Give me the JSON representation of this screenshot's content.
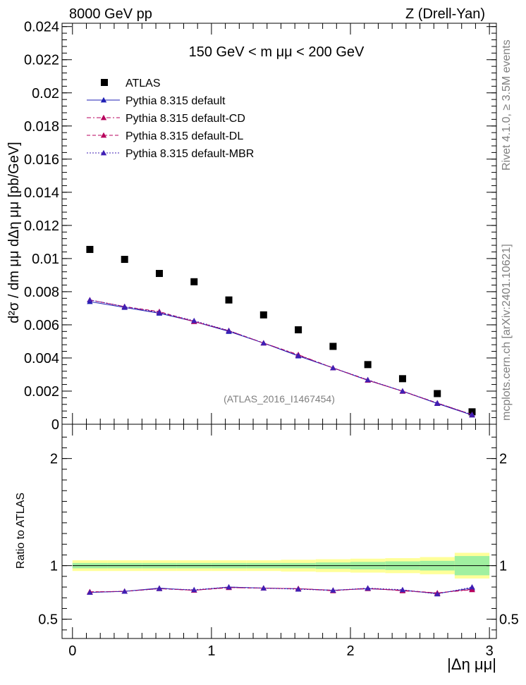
{
  "header": {
    "left": "8000 GeV pp",
    "right": "Z (Drell-Yan)"
  },
  "side_labels": {
    "rivet": "Rivet 4.1.0, ≥ 3.5M events",
    "mcplots": "mcplots.cern.ch [arXiv:2401.10621]"
  },
  "chart_data": [
    {
      "type": "scatter",
      "panel": "main",
      "title": "150 GeV < m μμ < 200 GeV",
      "watermark": "(ATLAS_2016_I1467454)",
      "ylabel": "d²σ / dm μμ dΔη μμ [pb/GeV]",
      "xlim": [
        -0.075,
        3.05
      ],
      "ylim": [
        0,
        0.0242
      ],
      "yticks": [
        0,
        0.002,
        0.004,
        0.006,
        0.008,
        0.01,
        0.012,
        0.014,
        0.016,
        0.018,
        0.02,
        0.022,
        0.024
      ],
      "ytick_labels": [
        "0",
        "0.002",
        "0.004",
        "0.006",
        "0.008",
        "0.01",
        "0.012",
        "0.014",
        "0.016",
        "0.018",
        "0.02",
        "0.022",
        "0.024"
      ],
      "x": [
        0.125,
        0.375,
        0.625,
        0.875,
        1.125,
        1.375,
        1.625,
        1.875,
        2.125,
        2.375,
        2.625,
        2.875
      ],
      "series": [
        {
          "name": "ATLAS",
          "style": "square",
          "color": "#000000",
          "values": [
            0.01055,
            0.00995,
            0.0091,
            0.0086,
            0.0075,
            0.0066,
            0.0057,
            0.0047,
            0.0036,
            0.00275,
            0.00185,
            0.00075
          ]
        },
        {
          "name": "Pythia 8.315 default",
          "style": "solid",
          "color": "#1f1fb4",
          "values": [
            0.0074,
            0.00705,
            0.0067,
            0.0062,
            0.0056,
            0.0049,
            0.00412,
            0.0034,
            0.00265,
            0.002,
            0.00125,
            0.00055
          ]
        },
        {
          "name": "Pythia 8.315 default-CD",
          "style": "dashdot",
          "color": "#b8005c",
          "values": [
            0.0075,
            0.0071,
            0.00675,
            0.0062,
            0.00565,
            0.0049,
            0.0042,
            0.0034,
            0.00268,
            0.00198,
            0.00128,
            0.00058
          ]
        },
        {
          "name": "Pythia 8.315 default-DL",
          "style": "dashed",
          "color": "#b8005c",
          "values": [
            0.0075,
            0.0071,
            0.0068,
            0.0062,
            0.00565,
            0.0049,
            0.00418,
            0.0034,
            0.00265,
            0.002,
            0.00128,
            0.00058
          ]
        },
        {
          "name": "Pythia 8.315 default-MBR",
          "style": "dotted",
          "color": "#3f1fb4",
          "values": [
            0.0075,
            0.0071,
            0.00675,
            0.00625,
            0.00565,
            0.0049,
            0.00415,
            0.0034,
            0.00268,
            0.002,
            0.00128,
            0.00058
          ]
        }
      ]
    },
    {
      "type": "line",
      "panel": "ratio",
      "ylabel": "Ratio to ATLAS",
      "xlabel": "|Δη μμ|",
      "xlim": [
        -0.075,
        3.05
      ],
      "ylim": [
        0.32,
        2.32
      ],
      "xticks": [
        0,
        1,
        2,
        3
      ],
      "xtick_labels": [
        "0",
        "1",
        "2",
        "3"
      ],
      "yticks": [
        0.5,
        1,
        2
      ],
      "ytick_labels": [
        "0.5",
        "1",
        "2"
      ],
      "bands": {
        "x_edges": [
          0,
          0.25,
          0.5,
          0.75,
          1.0,
          1.25,
          1.5,
          1.75,
          2.0,
          2.25,
          2.5,
          2.75,
          3.0
        ],
        "stat_halfwidth": [
          0.025,
          0.025,
          0.025,
          0.025,
          0.025,
          0.025,
          0.025,
          0.03,
          0.035,
          0.04,
          0.045,
          0.09
        ],
        "total_halfwidth": [
          0.05,
          0.05,
          0.05,
          0.05,
          0.05,
          0.05,
          0.055,
          0.06,
          0.065,
          0.07,
          0.08,
          0.12
        ],
        "stat_color": "#a0f0a0",
        "total_color": "#ffff99"
      },
      "series": [
        {
          "name": "Pythia 8.315 default",
          "color": "#1f1fb4",
          "values": [
            0.75,
            0.76,
            0.79,
            0.77,
            0.8,
            0.79,
            0.785,
            0.77,
            0.785,
            0.77,
            0.74,
            0.79
          ]
        },
        {
          "name": "Pythia 8.315 default-CD",
          "color": "#b8005c",
          "values": [
            0.755,
            0.76,
            0.785,
            0.77,
            0.795,
            0.79,
            0.785,
            0.765,
            0.79,
            0.765,
            0.745,
            0.775
          ]
        },
        {
          "name": "Pythia 8.315 default-DL",
          "color": "#b8005c",
          "values": [
            0.755,
            0.76,
            0.785,
            0.77,
            0.795,
            0.79,
            0.785,
            0.77,
            0.785,
            0.77,
            0.745,
            0.78
          ]
        },
        {
          "name": "Pythia 8.315 default-MBR",
          "color": "#3f1fb4",
          "values": [
            0.75,
            0.76,
            0.785,
            0.775,
            0.8,
            0.79,
            0.78,
            0.77,
            0.79,
            0.775,
            0.735,
            0.8
          ]
        }
      ]
    }
  ]
}
